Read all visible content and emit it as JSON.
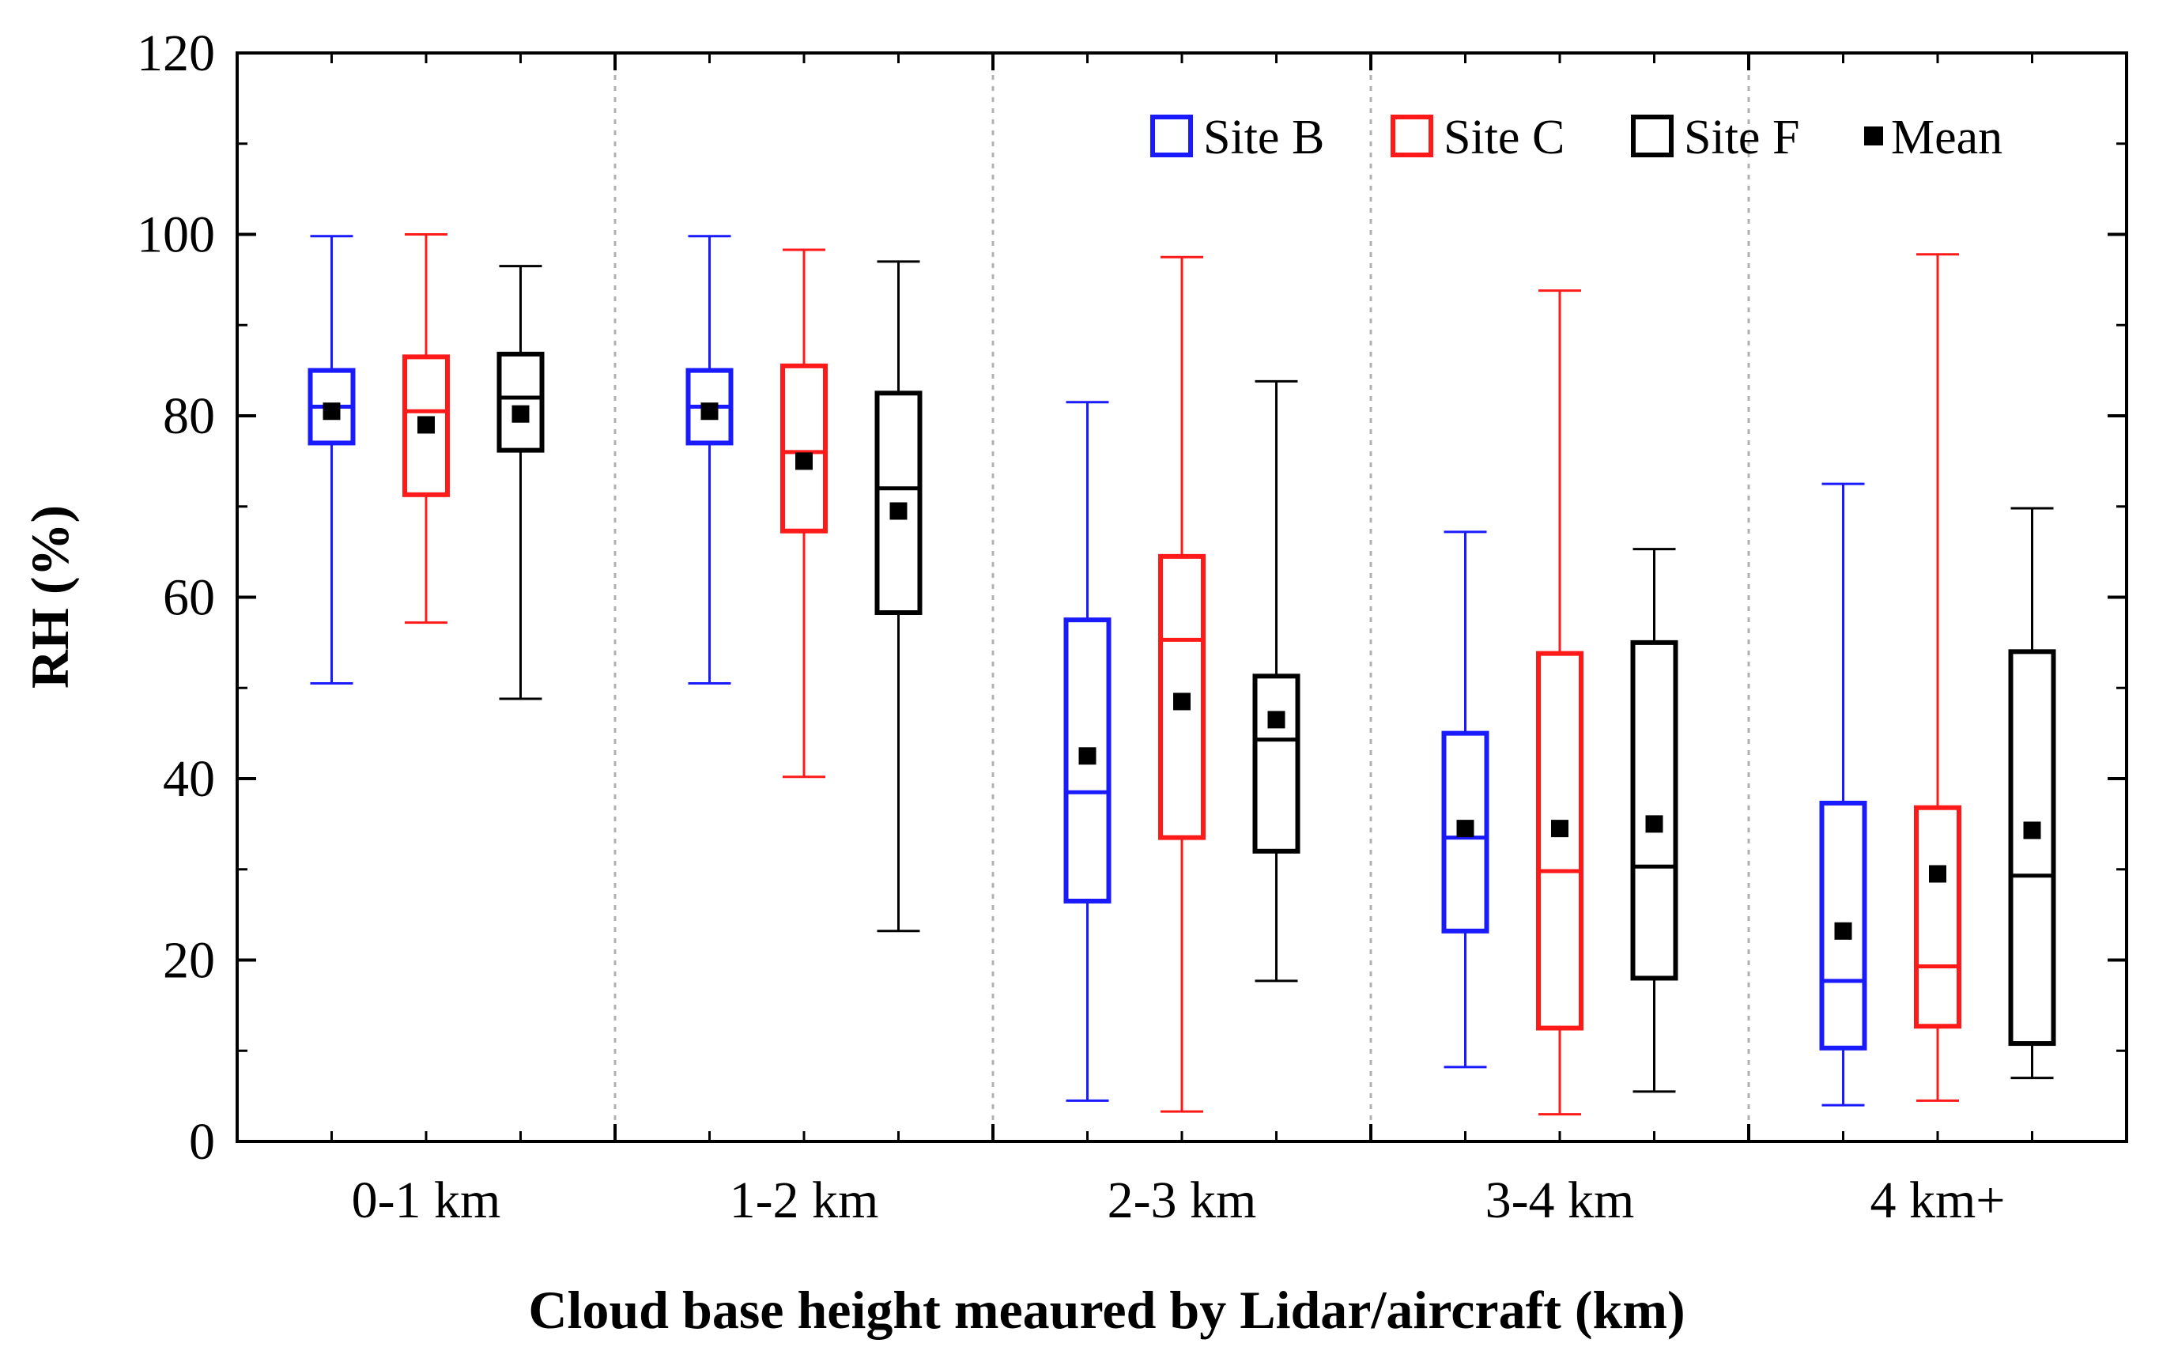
{
  "chart_data": {
    "type": "box",
    "title": "",
    "xlabel": "Cloud base height meaured by Lidar/aircraft (km)",
    "ylabel": "RH (%)",
    "ylim": [
      0,
      120
    ],
    "yticks": [
      0,
      20,
      40,
      60,
      80,
      100,
      120
    ],
    "ytick_labels": [
      "0",
      "20",
      "40",
      "60",
      "80",
      "100",
      "120"
    ],
    "categories": [
      "0-1 km",
      "1-2 km",
      "2-3 km",
      "3-4 km",
      "4 km+"
    ],
    "legend": {
      "position": "top-right",
      "mean_label": "Mean"
    },
    "series": [
      {
        "name": "Site B",
        "color": "#1a1aff",
        "boxes": [
          {
            "min": 50.5,
            "q1": 77,
            "median": 81,
            "q3": 85,
            "max": 99.8,
            "mean": 80.5
          },
          {
            "min": 50.5,
            "q1": 77,
            "median": 81,
            "q3": 85,
            "max": 99.8,
            "mean": 80.5
          },
          {
            "min": 4.5,
            "q1": 26.5,
            "median": 38.5,
            "q3": 57.5,
            "max": 81.5,
            "mean": 42.5
          },
          {
            "min": 8.2,
            "q1": 23.2,
            "median": 33.5,
            "q3": 45,
            "max": 67.2,
            "mean": 34.5
          },
          {
            "min": 4,
            "q1": 10.3,
            "median": 17.7,
            "q3": 37.3,
            "max": 72.5,
            "mean": 23.2
          }
        ]
      },
      {
        "name": "Site C",
        "color": "#ff1a1a",
        "boxes": [
          {
            "min": 57.2,
            "q1": 71.3,
            "median": 80.5,
            "q3": 86.5,
            "max": 100,
            "mean": 79
          },
          {
            "min": 40.2,
            "q1": 67.3,
            "median": 76,
            "q3": 85.5,
            "max": 98.3,
            "mean": 75
          },
          {
            "min": 3.3,
            "q1": 33.5,
            "median": 55.3,
            "q3": 64.5,
            "max": 97.5,
            "mean": 48.5
          },
          {
            "min": 3,
            "q1": 12.5,
            "median": 29.8,
            "q3": 53.8,
            "max": 93.8,
            "mean": 34.5
          },
          {
            "min": 4.5,
            "q1": 12.7,
            "median": 19.3,
            "q3": 36.8,
            "max": 97.8,
            "mean": 29.5
          }
        ]
      },
      {
        "name": "Site F",
        "color": "#000000",
        "boxes": [
          {
            "min": 48.8,
            "q1": 76.2,
            "median": 82,
            "q3": 86.8,
            "max": 96.5,
            "mean": 80.2
          },
          {
            "min": 23.2,
            "q1": 58.3,
            "median": 72,
            "q3": 82.5,
            "max": 97,
            "mean": 69.5
          },
          {
            "min": 17.7,
            "q1": 32,
            "median": 44.3,
            "q3": 51.3,
            "max": 83.8,
            "mean": 46.5
          },
          {
            "min": 5.5,
            "q1": 18,
            "median": 30.3,
            "q3": 55,
            "max": 65.3,
            "mean": 35
          },
          {
            "min": 7,
            "q1": 10.8,
            "median": 29.3,
            "q3": 54,
            "max": 69.8,
            "mean": 34.3
          }
        ]
      }
    ]
  }
}
